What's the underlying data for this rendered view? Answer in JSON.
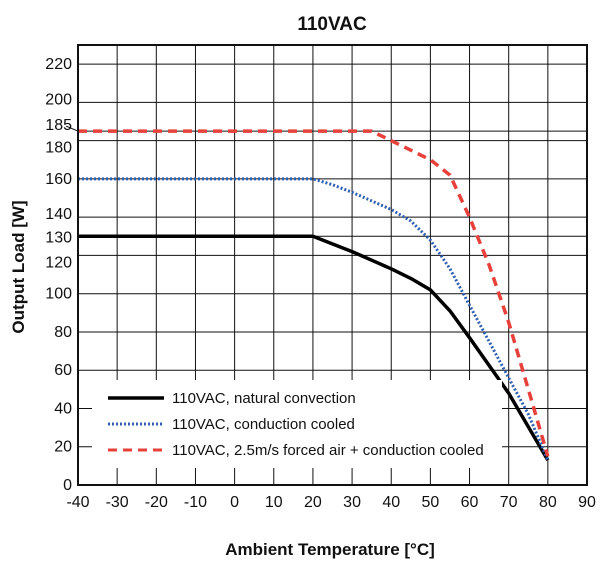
{
  "chart_data": {
    "type": "line",
    "title": "110VAC",
    "xlabel": "Ambient Temperature [°C]",
    "ylabel": "Output Load [W]",
    "xlim": [
      -40,
      90
    ],
    "ylim": [
      0,
      230
    ],
    "x_ticks": [
      -40,
      -30,
      -20,
      -10,
      0,
      10,
      20,
      30,
      40,
      50,
      60,
      70,
      80,
      90
    ],
    "y_ticks": [
      0,
      20,
      40,
      60,
      80,
      100,
      120,
      130,
      140,
      160,
      180,
      185,
      200,
      220
    ],
    "grid": true,
    "legend_position": "bottom-left",
    "series": [
      {
        "name": "110VAC, natural convection",
        "color": "#000000",
        "style": "solid",
        "points": [
          [
            -40,
            130
          ],
          [
            20,
            130
          ],
          [
            30,
            122
          ],
          [
            40,
            113
          ],
          [
            45,
            108
          ],
          [
            50,
            102
          ],
          [
            55,
            91
          ],
          [
            60,
            77
          ],
          [
            70,
            48
          ],
          [
            80,
            13
          ]
        ]
      },
      {
        "name": "110VAC, conduction cooled",
        "color": "#2f5fb3",
        "style": "dotted",
        "points": [
          [
            -40,
            160
          ],
          [
            20,
            160
          ],
          [
            25,
            157
          ],
          [
            30,
            153
          ],
          [
            40,
            144
          ],
          [
            45,
            138
          ],
          [
            50,
            128
          ],
          [
            55,
            113
          ],
          [
            60,
            94
          ],
          [
            65,
            75
          ],
          [
            70,
            56
          ],
          [
            75,
            37
          ],
          [
            80,
            13
          ]
        ]
      },
      {
        "name": "110VAC, 2.5m/s forced air + conduction cooled",
        "color": "#e8403a",
        "style": "dashed",
        "points": [
          [
            -40,
            185
          ],
          [
            35,
            185
          ],
          [
            40,
            180
          ],
          [
            45,
            175
          ],
          [
            50,
            170
          ],
          [
            55,
            162
          ],
          [
            60,
            140
          ],
          [
            65,
            115
          ],
          [
            70,
            85
          ],
          [
            75,
            50
          ],
          [
            80,
            15
          ]
        ]
      }
    ]
  }
}
